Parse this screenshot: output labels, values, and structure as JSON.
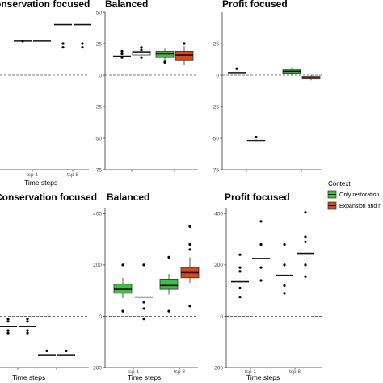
{
  "colors": {
    "only_restoration": "#3fbf3f",
    "expansion": "#d9471c",
    "white_box": "#ffffff",
    "axis": "#333333",
    "point": "#000000"
  },
  "legend": {
    "title": "Context",
    "items": [
      {
        "label": "Only restoration",
        "color_key": "only_restoration"
      },
      {
        "label": "Expansion and r",
        "color_key": "expansion"
      }
    ]
  },
  "chart_data": [
    {
      "type": "box",
      "title": "onservation focused",
      "xlabel": "Time steps",
      "ylabel": "",
      "ylim": [
        -75,
        50
      ],
      "yticks": [],
      "categories": [
        "tsp 1",
        "tsp 8"
      ],
      "show_yaxis": false,
      "groups": [
        {
          "label": "tsp 1",
          "boxes": [
            {
              "color_key": "white_box",
              "median": 27,
              "q1": 27,
              "q3": 27,
              "whisker_low": 27,
              "whisker_high": 27,
              "outliers": [
                27
              ]
            },
            {
              "color_key": "white_box",
              "median": 27,
              "q1": 27,
              "q3": 27,
              "whisker_low": 27,
              "whisker_high": 27,
              "outliers": []
            }
          ]
        },
        {
          "label": "tsp 8",
          "boxes": [
            {
              "color_key": "white_box",
              "median": 40,
              "q1": 40,
              "q3": 40,
              "whisker_low": 40,
              "whisker_high": 40,
              "outliers": [
                25,
                22
              ]
            },
            {
              "color_key": "white_box",
              "median": 40,
              "q1": 40,
              "q3": 40,
              "whisker_low": 40,
              "whisker_high": 40,
              "outliers": [
                25,
                22
              ]
            }
          ]
        }
      ]
    },
    {
      "type": "box",
      "title": "Balanced",
      "xlabel": "",
      "ylabel": "",
      "ylim": [
        -75,
        50
      ],
      "yticks": [
        "50",
        "25",
        "0",
        "-25",
        "-50",
        "-75"
      ],
      "categories": [],
      "show_yaxis": true,
      "groups": [
        {
          "label": "",
          "boxes": [
            {
              "color_key": "white_box",
              "median": 15,
              "q1": 15,
              "q3": 15,
              "whisker_low": 15,
              "whisker_high": 15,
              "outliers": [
                19,
                14,
                17
              ]
            },
            {
              "color_key": "white_box",
              "median": 18,
              "q1": 16,
              "q3": 19,
              "whisker_low": 16,
              "whisker_high": 19,
              "outliers": [
                22,
                20,
                14
              ]
            }
          ]
        },
        {
          "label": "",
          "boxes": [
            {
              "color_key": "only_restoration",
              "median": 17,
              "q1": 14,
              "q3": 19,
              "whisker_low": 10,
              "whisker_high": 21,
              "outliers": [
                11,
                10
              ]
            },
            {
              "color_key": "expansion",
              "median": 16,
              "q1": 12,
              "q3": 19,
              "whisker_low": 8,
              "whisker_high": 23,
              "outliers": [
                25
              ]
            }
          ]
        }
      ]
    },
    {
      "type": "box",
      "title": "Profit focused",
      "xlabel": "",
      "ylabel": "",
      "ylim": [
        -75,
        50
      ],
      "yticks": [
        "25",
        "0",
        "-25",
        "-50",
        "-75"
      ],
      "categories": [],
      "show_yaxis": true,
      "groups": [
        {
          "label": "",
          "boxes": [
            {
              "color_key": "white_box",
              "median": 2,
              "q1": 2,
              "q3": 2,
              "whisker_low": 2,
              "whisker_high": 2,
              "outliers": [
                5
              ]
            },
            {
              "color_key": "expansion",
              "median": -52,
              "q1": -52.5,
              "q3": -51.5,
              "whisker_low": -53,
              "whisker_high": -51,
              "outliers": [
                -49
              ]
            }
          ]
        },
        {
          "label": "",
          "boxes": [
            {
              "color_key": "only_restoration",
              "median": 3,
              "q1": 1.5,
              "q3": 4.5,
              "whisker_low": 0,
              "whisker_high": 6,
              "outliers": []
            },
            {
              "color_key": "expansion",
              "median": -2,
              "q1": -3,
              "q3": -1,
              "whisker_low": -4,
              "whisker_high": 0,
              "outliers": []
            }
          ]
        }
      ]
    },
    {
      "type": "box",
      "title": "Conservation focused",
      "xlabel": "Time steps",
      "ylabel": "",
      "ylim": [
        -200,
        420
      ],
      "yticks": [],
      "categories": [],
      "show_yaxis": false,
      "groups": [
        {
          "label": "",
          "boxes": [
            {
              "color_key": "white_box",
              "median": -40,
              "q1": -40,
              "q3": -40,
              "whisker_low": -40,
              "whisker_high": -40,
              "outliers": [
                -10,
                -20,
                -55,
                -65
              ]
            },
            {
              "color_key": "white_box",
              "median": -40,
              "q1": -40,
              "q3": -40,
              "whisker_low": -40,
              "whisker_high": -40,
              "outliers": [
                -10,
                -20,
                -55,
                -65
              ]
            }
          ]
        },
        {
          "label": "",
          "boxes": [
            {
              "color_key": "only_restoration",
              "median": -150,
              "q1": -150,
              "q3": -150,
              "whisker_low": -150,
              "whisker_high": -150,
              "outliers": [
                -135
              ]
            },
            {
              "color_key": "white_box",
              "median": -150,
              "q1": -150,
              "q3": -150,
              "whisker_low": -150,
              "whisker_high": -150,
              "outliers": [
                -135
              ]
            }
          ]
        }
      ]
    },
    {
      "type": "box",
      "title": "Balanced",
      "xlabel": "Time steps",
      "ylabel": "",
      "ylim": [
        -200,
        420
      ],
      "yticks": [
        "400",
        "200",
        "0",
        "-200"
      ],
      "categories": [
        "tsp 1",
        "tsp 8"
      ],
      "show_yaxis": true,
      "groups": [
        {
          "label": "tsp 1",
          "boxes": [
            {
              "color_key": "only_restoration",
              "median": 105,
              "q1": 90,
              "q3": 125,
              "whisker_low": 70,
              "whisker_high": 150,
              "outliers": [
                200,
                20
              ]
            },
            {
              "color_key": "white_box",
              "median": 75,
              "q1": 75,
              "q3": 75,
              "whisker_low": 75,
              "whisker_high": 75,
              "outliers": [
                200,
                55,
                30,
                -10
              ]
            }
          ]
        },
        {
          "label": "tsp 8",
          "boxes": [
            {
              "color_key": "only_restoration",
              "median": 120,
              "q1": 105,
              "q3": 145,
              "whisker_low": 85,
              "whisker_high": 165,
              "outliers": [
                230,
                20
              ]
            },
            {
              "color_key": "expansion",
              "median": 170,
              "q1": 150,
              "q3": 190,
              "whisker_low": 130,
              "whisker_high": 230,
              "outliers": [
                350,
                280,
                260,
                40
              ]
            }
          ]
        }
      ]
    },
    {
      "type": "box",
      "title": "Profit focused",
      "xlabel": "Time steps",
      "ylabel": "",
      "ylim": [
        -200,
        420
      ],
      "yticks": [
        "400",
        "200",
        "0",
        "-200"
      ],
      "categories": [
        "tsp 1",
        "tsp 8"
      ],
      "show_yaxis": true,
      "groups": [
        {
          "label": "tsp 1",
          "boxes": [
            {
              "color_key": "white_box",
              "median": 135,
              "q1": 135,
              "q3": 135,
              "whisker_low": 135,
              "whisker_high": 135,
              "outliers": [
                240,
                190,
                175,
                110,
                75
              ]
            },
            {
              "color_key": "white_box",
              "median": 225,
              "q1": 225,
              "q3": 225,
              "whisker_low": 225,
              "whisker_high": 225,
              "outliers": [
                370,
                280,
                190,
                140
              ]
            }
          ]
        },
        {
          "label": "tsp 8",
          "boxes": [
            {
              "color_key": "white_box",
              "median": 160,
              "q1": 160,
              "q3": 160,
              "whisker_low": 160,
              "whisker_high": 160,
              "outliers": [
                280,
                200,
                120,
                90
              ]
            },
            {
              "color_key": "white_box",
              "median": 245,
              "q1": 245,
              "q3": 245,
              "whisker_low": 245,
              "whisker_high": 245,
              "outliers": [
                405,
                310,
                290,
                200,
                155
              ]
            }
          ]
        }
      ]
    }
  ]
}
